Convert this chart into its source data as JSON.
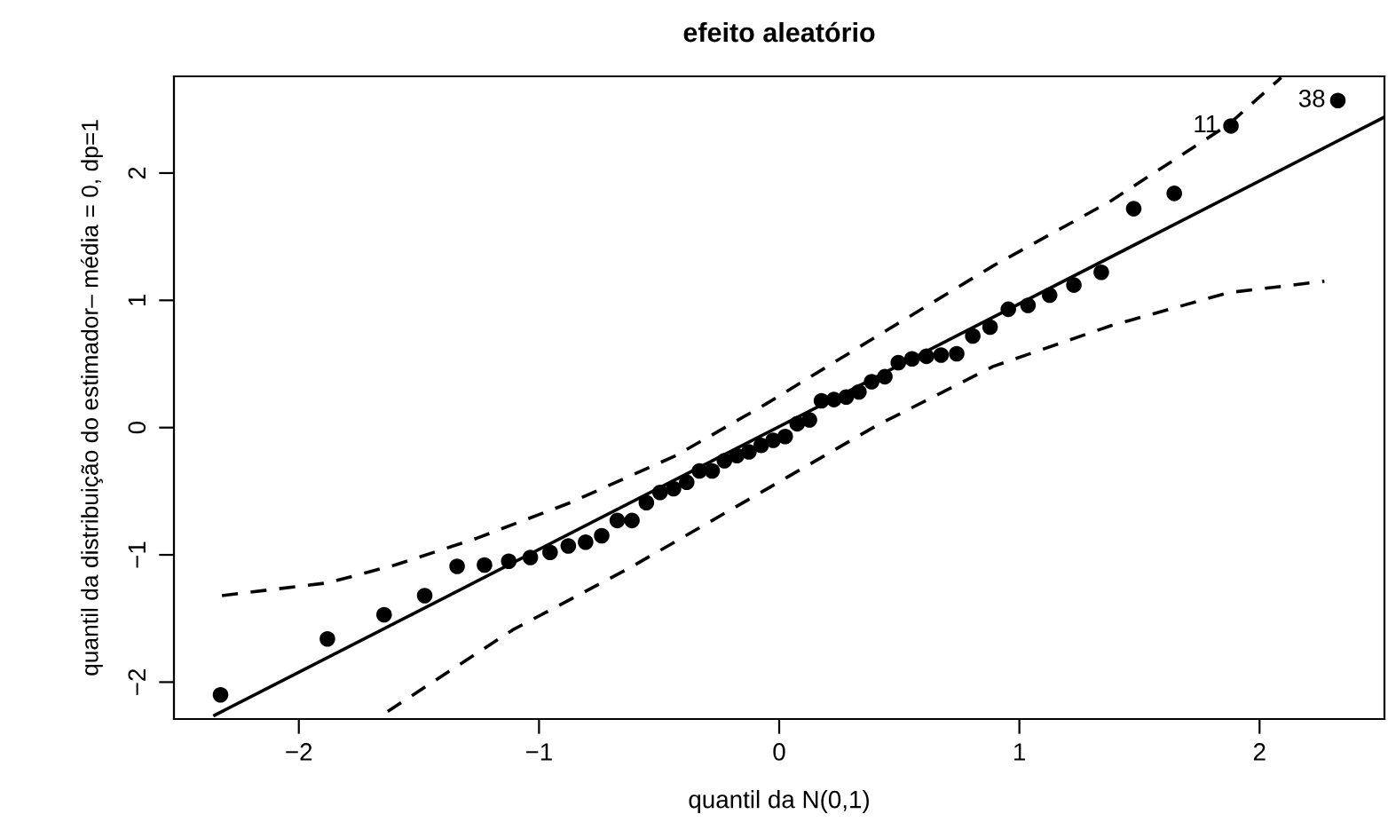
{
  "chart_data": {
    "type": "scatter",
    "title": "efeito aleatório",
    "xlabel": "quantil da N(0,1)",
    "ylabel": "quantil da distribuição do estimador– média = 0, dp=1",
    "xlim": [
      -2.52,
      2.52
    ],
    "ylim": [
      -2.29,
      2.76
    ],
    "xticks": [
      {
        "value": -2,
        "label": "−2"
      },
      {
        "value": -1,
        "label": "−1"
      },
      0,
      1,
      2
    ],
    "yticks": [
      {
        "value": -2,
        "label": "−2"
      },
      {
        "value": -1,
        "label": "−1"
      },
      0,
      1,
      2
    ],
    "grid": false,
    "legend": false,
    "series": [
      {
        "marker": "circle",
        "color": "#000000",
        "x": [
          -2.326,
          -1.881,
          -1.645,
          -1.476,
          -1.341,
          -1.227,
          -1.126,
          -1.036,
          -0.954,
          -0.878,
          -0.806,
          -0.739,
          -0.674,
          -0.613,
          -0.553,
          -0.496,
          -0.44,
          -0.385,
          -0.332,
          -0.279,
          -0.228,
          -0.176,
          -0.126,
          -0.075,
          -0.025,
          0.025,
          0.075,
          0.126,
          0.176,
          0.228,
          0.279,
          0.332,
          0.385,
          0.44,
          0.496,
          0.553,
          0.613,
          0.674,
          0.739,
          0.806,
          0.878,
          0.954,
          1.036,
          1.126,
          1.227,
          1.341,
          1.476,
          1.645,
          1.881,
          2.326
        ],
        "values": [
          -2.1,
          -1.66,
          -1.47,
          -1.32,
          -1.09,
          -1.08,
          -1.05,
          -1.02,
          -0.98,
          -0.93,
          -0.9,
          -0.85,
          -0.73,
          -0.73,
          -0.59,
          -0.51,
          -0.48,
          -0.43,
          -0.34,
          -0.34,
          -0.26,
          -0.22,
          -0.19,
          -0.14,
          -0.1,
          -0.07,
          0.03,
          0.06,
          0.21,
          0.22,
          0.24,
          0.28,
          0.36,
          0.4,
          0.51,
          0.54,
          0.56,
          0.57,
          0.58,
          0.72,
          0.79,
          0.93,
          0.96,
          1.04,
          1.12,
          1.22,
          1.72,
          1.84,
          2.37,
          2.57
        ]
      },
      {
        "type": "line",
        "line_style": "solid",
        "color": "#000000",
        "x": [
          -2.35,
          2.52
        ],
        "values": [
          -2.26,
          2.44
        ]
      },
      {
        "type": "line",
        "line_style": "dashed",
        "color": "#000000",
        "x": [
          -2.32,
          -1.88,
          -1.6,
          -1.26,
          -0.87,
          -0.43,
          -0.06,
          0.4,
          0.89,
          1.38,
          1.87,
          2.09
        ],
        "values": [
          -1.32,
          -1.22,
          -1.08,
          -0.87,
          -0.59,
          -0.22,
          0.18,
          0.71,
          1.27,
          1.78,
          2.38,
          2.75
        ]
      },
      {
        "type": "line",
        "line_style": "dashed",
        "color": "#000000",
        "x": [
          -1.63,
          -1.11,
          -0.62,
          -0.04,
          0.4,
          0.89,
          1.38,
          1.87,
          2.27
        ],
        "values": [
          -2.23,
          -1.59,
          -1.1,
          -0.47,
          0.01,
          0.48,
          0.8,
          1.06,
          1.15
        ]
      }
    ],
    "annotations": [
      {
        "text": "11",
        "x": 1.881,
        "y": 2.37
      },
      {
        "text": "38",
        "x": 2.326,
        "y": 2.57
      }
    ]
  }
}
